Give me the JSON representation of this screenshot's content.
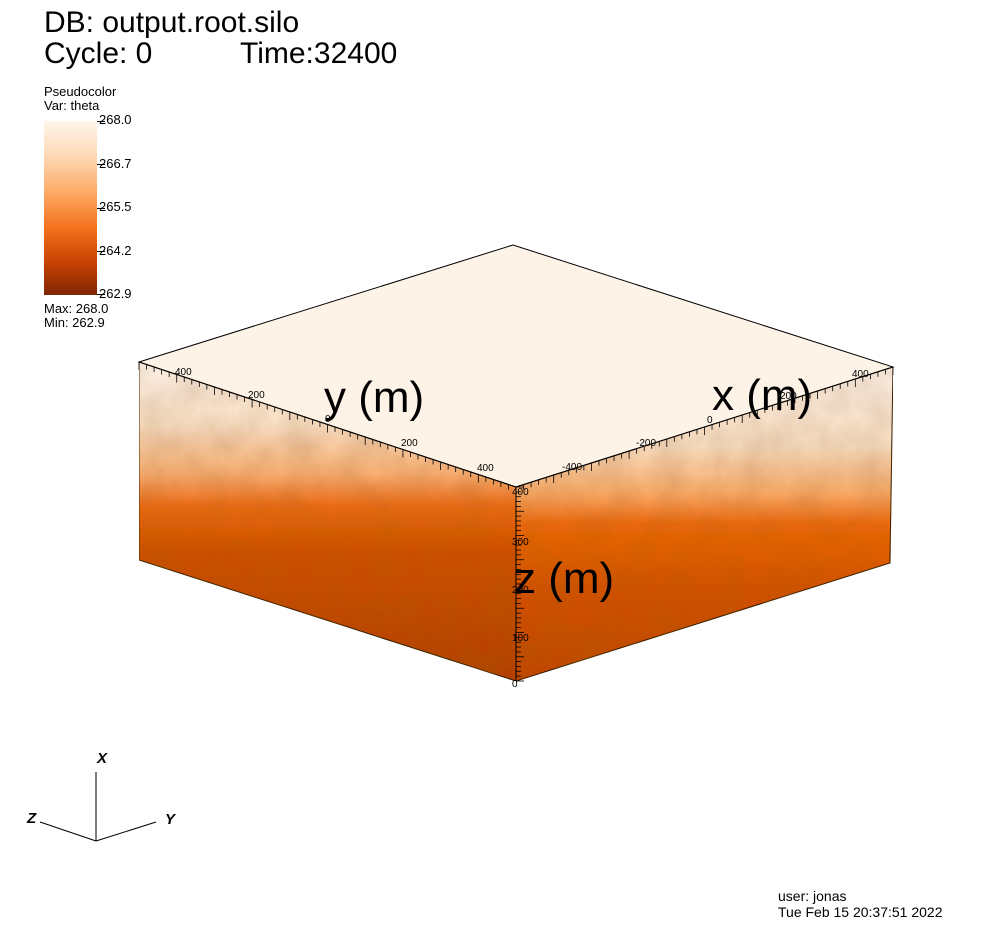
{
  "header": {
    "db": "DB: output.root.silo",
    "cycle": "Cycle: 0",
    "time": "Time:32400"
  },
  "legend": {
    "plot_type": "Pseudocolor",
    "variable": "Var: theta",
    "ticks": [
      "268.0",
      "266.7",
      "265.5",
      "264.2",
      "262.9"
    ],
    "max": "Max:  268.0",
    "min": "Min:  262.9",
    "colors": {
      "top": "#fff5eb",
      "bottom": "#7f2704"
    }
  },
  "axes": {
    "x_title": "x (m)",
    "y_title": "y (m)",
    "z_title": "z (m)",
    "x_ticks": [
      "-400",
      "-200",
      "0",
      "200",
      "400"
    ],
    "y_ticks": [
      "400",
      "200",
      "0",
      "200",
      "400"
    ],
    "z_ticks": [
      "0",
      "100",
      "200",
      "300",
      "400"
    ]
  },
  "triad": {
    "x": "X",
    "y": "Y",
    "z": "Z"
  },
  "footer": {
    "user": "user: jonas",
    "date": "Tue Feb 15 20:37:51 2022"
  }
}
